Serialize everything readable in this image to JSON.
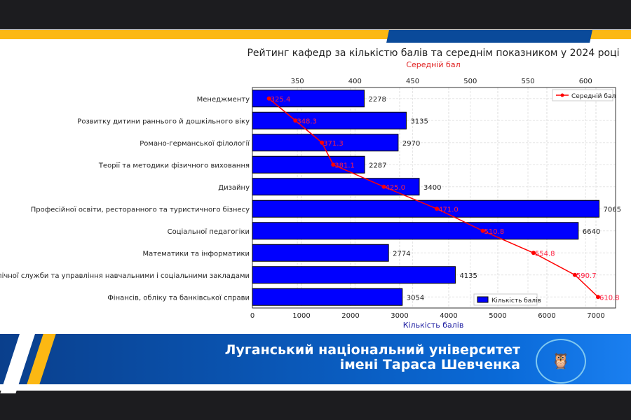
{
  "chart_data": {
    "type": "bar",
    "title": "Рейтинг кафедр за кількістю балів та середнім показником у 2024 році",
    "xlabel": "Кількість балів",
    "x2label": "Середній бал",
    "xlim": [
      0,
      7400
    ],
    "x2lim": [
      311,
      626
    ],
    "xticks": [
      0,
      1000,
      2000,
      3000,
      4000,
      5000,
      6000,
      7000
    ],
    "x2ticks": [
      350,
      400,
      450,
      500,
      550,
      600
    ],
    "categories": [
      "Менеджменту",
      "Розвитку дитини раннього й дошкільного віку",
      "Романо-германської філології",
      "Теорії та методики фізичного виховання",
      "Дизайну",
      "Професійної освіти, ресторанного та туристичного бізнесу",
      "Соціальної педагогіки",
      "Математики та інформатики",
      "Публічної служби та управління навчальними і соціальними закладами",
      "Фінансів, обліку та банківської справи"
    ],
    "series": [
      {
        "name": "Кількість балів",
        "type": "bar",
        "color": "#0000ff",
        "values": [
          2278,
          3135,
          2970,
          2287,
          3400,
          7065,
          6640,
          2774,
          4135,
          3054
        ],
        "legend": "bottom-right"
      },
      {
        "name": "Середній бал",
        "type": "line",
        "color": "#ff0000",
        "values": [
          325.4,
          348.3,
          371.3,
          381.1,
          425.0,
          471.0,
          510.8,
          554.8,
          590.7,
          610.8
        ],
        "legend": "top-right"
      }
    ],
    "grid": true
  },
  "footer": {
    "line1": "Луганський національний університет",
    "line2": "імені Тараса Шевченка"
  }
}
